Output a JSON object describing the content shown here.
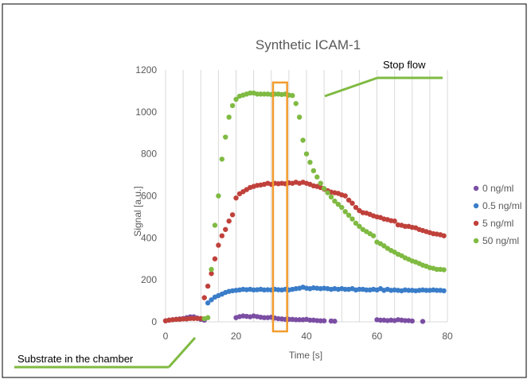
{
  "chart_data": {
    "type": "scatter",
    "title": "Synthetic ICAM-1",
    "xlabel": "Time [s]",
    "ylabel": "Signal [a.u.]",
    "xlim": [
      0,
      80
    ],
    "ylim": [
      0,
      1200
    ],
    "x_ticks": [
      0,
      20,
      40,
      60,
      80
    ],
    "y_ticks": [
      0,
      200,
      400,
      600,
      800,
      1000,
      1200
    ],
    "grid": "vertical",
    "legend_position": "right",
    "annotations": {
      "stop_flow": "Stop flow",
      "substrate": "Substrate in the chamber"
    },
    "highlight_box": {
      "x_from": 30.5,
      "x_to": 34.5,
      "y_from": 0,
      "y_to": 1140,
      "color": "#f39c2d"
    },
    "series": [
      {
        "name": "0 ng/ml",
        "color": "#7b4ea3",
        "points": [
          [
            0,
            5
          ],
          [
            1,
            8
          ],
          [
            2,
            10
          ],
          [
            3,
            12
          ],
          [
            4,
            14
          ],
          [
            5,
            16
          ],
          [
            6,
            20
          ],
          [
            7,
            24
          ],
          [
            8,
            24
          ],
          [
            9,
            18
          ],
          [
            10,
            12
          ],
          [
            11,
            8
          ],
          [
            20,
            20
          ],
          [
            21,
            25
          ],
          [
            22,
            28
          ],
          [
            23,
            26
          ],
          [
            24,
            24
          ],
          [
            25,
            28
          ],
          [
            26,
            25
          ],
          [
            27,
            22
          ],
          [
            28,
            20
          ],
          [
            29,
            20
          ],
          [
            30,
            22
          ],
          [
            31,
            18
          ],
          [
            32,
            15
          ],
          [
            33,
            14
          ],
          [
            34,
            12
          ],
          [
            35,
            12
          ],
          [
            36,
            12
          ],
          [
            37,
            10
          ],
          [
            38,
            10
          ],
          [
            39,
            10
          ],
          [
            40,
            12
          ],
          [
            41,
            8
          ],
          [
            42,
            8
          ],
          [
            43,
            6
          ],
          [
            44,
            5
          ],
          [
            45,
            5
          ],
          [
            47,
            4
          ],
          [
            48,
            3
          ],
          [
            60,
            10
          ],
          [
            61,
            8
          ],
          [
            62,
            8
          ],
          [
            63,
            6
          ],
          [
            64,
            8
          ],
          [
            65,
            6
          ],
          [
            66,
            10
          ],
          [
            67,
            8
          ],
          [
            68,
            6
          ],
          [
            69,
            6
          ],
          [
            70,
            4
          ],
          [
            73,
            2
          ]
        ]
      },
      {
        "name": "0.5 ng/ml",
        "color": "#3a7dc9",
        "points": [
          [
            12,
            90
          ],
          [
            13,
            105
          ],
          [
            14,
            118
          ],
          [
            15,
            125
          ],
          [
            16,
            132
          ],
          [
            17,
            140
          ],
          [
            18,
            145
          ],
          [
            19,
            148
          ],
          [
            20,
            150
          ],
          [
            21,
            152
          ],
          [
            22,
            155
          ],
          [
            23,
            153
          ],
          [
            24,
            155
          ],
          [
            25,
            152
          ],
          [
            26,
            153
          ],
          [
            27,
            155
          ],
          [
            28,
            152
          ],
          [
            29,
            153
          ],
          [
            30,
            152
          ],
          [
            31,
            155
          ],
          [
            32,
            153
          ],
          [
            33,
            152
          ],
          [
            34,
            155
          ],
          [
            35,
            152
          ],
          [
            36,
            155
          ],
          [
            37,
            158
          ],
          [
            38,
            160
          ],
          [
            39,
            165
          ],
          [
            40,
            160
          ],
          [
            41,
            158
          ],
          [
            42,
            162
          ],
          [
            43,
            160
          ],
          [
            44,
            158
          ],
          [
            45,
            160
          ],
          [
            46,
            158
          ],
          [
            47,
            155
          ],
          [
            48,
            158
          ],
          [
            49,
            155
          ],
          [
            50,
            158
          ],
          [
            51,
            155
          ],
          [
            52,
            155
          ],
          [
            53,
            158
          ],
          [
            54,
            152
          ],
          [
            55,
            155
          ],
          [
            56,
            155
          ],
          [
            57,
            152
          ],
          [
            58,
            152
          ],
          [
            59,
            155
          ],
          [
            60,
            152
          ],
          [
            61,
            158
          ],
          [
            62,
            150
          ],
          [
            63,
            155
          ],
          [
            64,
            150
          ],
          [
            65,
            152
          ],
          [
            66,
            150
          ],
          [
            67,
            148
          ],
          [
            68,
            152
          ],
          [
            69,
            150
          ],
          [
            70,
            150
          ],
          [
            71,
            148
          ],
          [
            72,
            150
          ],
          [
            73,
            152
          ],
          [
            74,
            150
          ],
          [
            75,
            150
          ],
          [
            76,
            152
          ],
          [
            77,
            150
          ],
          [
            78,
            150
          ],
          [
            79,
            148
          ]
        ]
      },
      {
        "name": "5 ng/ml",
        "color": "#c0413b",
        "points": [
          [
            0,
            5
          ],
          [
            1,
            8
          ],
          [
            2,
            10
          ],
          [
            3,
            12
          ],
          [
            4,
            12
          ],
          [
            5,
            14
          ],
          [
            6,
            14
          ],
          [
            7,
            16
          ],
          [
            8,
            16
          ],
          [
            9,
            16
          ],
          [
            10,
            16
          ],
          [
            11,
            115
          ],
          [
            12,
            170
          ],
          [
            13,
            230
          ],
          [
            14,
            300
          ],
          [
            15,
            365
          ],
          [
            16,
            410
          ],
          [
            17,
            440
          ],
          [
            18,
            480
          ],
          [
            19,
            510
          ],
          [
            20,
            590
          ],
          [
            21,
            610
          ],
          [
            22,
            620
          ],
          [
            23,
            630
          ],
          [
            24,
            640
          ],
          [
            25,
            645
          ],
          [
            26,
            650
          ],
          [
            27,
            652
          ],
          [
            28,
            655
          ],
          [
            29,
            660
          ],
          [
            30,
            655
          ],
          [
            31,
            660
          ],
          [
            32,
            658
          ],
          [
            33,
            660
          ],
          [
            34,
            658
          ],
          [
            35,
            662
          ],
          [
            36,
            660
          ],
          [
            37,
            665
          ],
          [
            38,
            660
          ],
          [
            39,
            665
          ],
          [
            40,
            660
          ],
          [
            41,
            655
          ],
          [
            42,
            648
          ],
          [
            43,
            645
          ],
          [
            44,
            640
          ],
          [
            45,
            632
          ],
          [
            46,
            625
          ],
          [
            47,
            618
          ],
          [
            48,
            615
          ],
          [
            49,
            612
          ],
          [
            50,
            605
          ],
          [
            51,
            600
          ],
          [
            52,
            580
          ],
          [
            53,
            565
          ],
          [
            54,
            545
          ],
          [
            55,
            530
          ],
          [
            56,
            520
          ],
          [
            57,
            518
          ],
          [
            58,
            512
          ],
          [
            59,
            505
          ],
          [
            60,
            500
          ],
          [
            61,
            497
          ],
          [
            62,
            490
          ],
          [
            63,
            487
          ],
          [
            64,
            482
          ],
          [
            65,
            480
          ],
          [
            66,
            462
          ],
          [
            67,
            460
          ],
          [
            68,
            455
          ],
          [
            69,
            455
          ],
          [
            70,
            450
          ],
          [
            71,
            448
          ],
          [
            72,
            440
          ],
          [
            73,
            435
          ],
          [
            74,
            430
          ],
          [
            75,
            425
          ],
          [
            76,
            420
          ],
          [
            77,
            418
          ],
          [
            78,
            415
          ],
          [
            79,
            410
          ]
        ]
      },
      {
        "name": "50 ng/ml",
        "color": "#7fba42",
        "points": [
          [
            11,
            15
          ],
          [
            12,
            20
          ],
          [
            13,
            250
          ],
          [
            14,
            460
          ],
          [
            15,
            600
          ],
          [
            16,
            775
          ],
          [
            17,
            880
          ],
          [
            18,
            975
          ],
          [
            19,
            1030
          ],
          [
            20,
            1060
          ],
          [
            21,
            1075
          ],
          [
            22,
            1080
          ],
          [
            23,
            1085
          ],
          [
            24,
            1090
          ],
          [
            25,
            1090
          ],
          [
            26,
            1085
          ],
          [
            27,
            1085
          ],
          [
            28,
            1085
          ],
          [
            29,
            1085
          ],
          [
            30,
            1083
          ],
          [
            31,
            1085
          ],
          [
            32,
            1085
          ],
          [
            33,
            1083
          ],
          [
            34,
            1085
          ],
          [
            35,
            1080
          ],
          [
            36,
            1078
          ],
          [
            37,
            1040
          ],
          [
            38,
            975
          ],
          [
            39,
            865
          ],
          [
            40,
            800
          ],
          [
            41,
            760
          ],
          [
            42,
            720
          ],
          [
            43,
            690
          ],
          [
            44,
            660
          ],
          [
            45,
            635
          ],
          [
            46,
            615
          ],
          [
            47,
            595
          ],
          [
            48,
            575
          ],
          [
            49,
            560
          ],
          [
            50,
            545
          ],
          [
            51,
            525
          ],
          [
            52,
            508
          ],
          [
            53,
            490
          ],
          [
            54,
            470
          ],
          [
            55,
            455
          ],
          [
            56,
            440
          ],
          [
            57,
            430
          ],
          [
            58,
            420
          ],
          [
            59,
            410
          ],
          [
            60,
            380
          ],
          [
            61,
            372
          ],
          [
            62,
            362
          ],
          [
            63,
            350
          ],
          [
            64,
            340
          ],
          [
            65,
            332
          ],
          [
            66,
            322
          ],
          [
            67,
            315
          ],
          [
            68,
            305
          ],
          [
            69,
            298
          ],
          [
            70,
            290
          ],
          [
            71,
            285
          ],
          [
            72,
            278
          ],
          [
            73,
            270
          ],
          [
            74,
            265
          ],
          [
            75,
            258
          ],
          [
            76,
            255
          ],
          [
            77,
            250
          ],
          [
            78,
            250
          ],
          [
            79,
            248
          ]
        ]
      }
    ]
  }
}
